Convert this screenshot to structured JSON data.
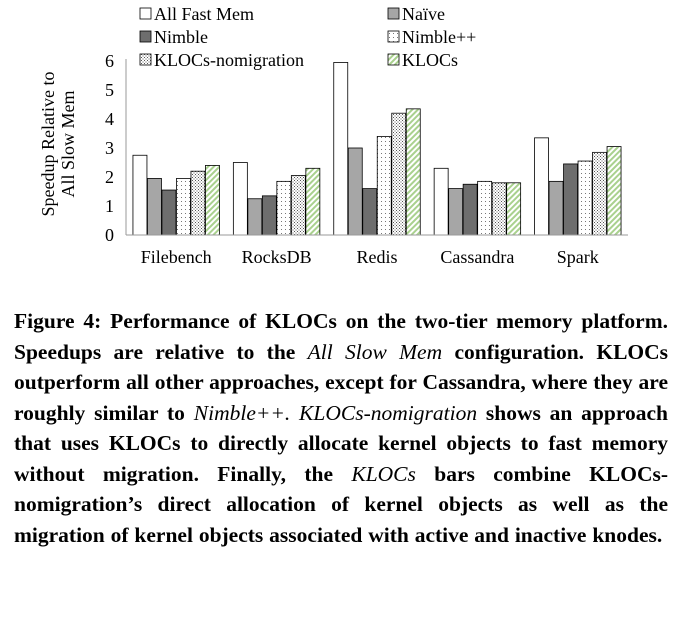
{
  "chart_data": {
    "type": "bar",
    "ylabel": "Speedup Relative to All Slow Mem",
    "ylabel_lines": [
      "Speedup Relative to",
      "All Slow Mem"
    ],
    "ylim": [
      0,
      6
    ],
    "yticks": [
      "0",
      "1",
      "2",
      "3",
      "4",
      "5",
      "6"
    ],
    "grid": false,
    "legend_placement": "top",
    "categories": [
      "Filebench",
      "RocksDB",
      "Redis",
      "Cassandra",
      "Spark"
    ],
    "series": [
      {
        "name": "All Fast Mem",
        "fill": "#ffffff",
        "pattern": "none",
        "values": [
          2.75,
          2.5,
          5.95,
          2.3,
          3.35
        ]
      },
      {
        "name": "Naïve",
        "fill": "#a6a6a6",
        "pattern": "none",
        "values": [
          1.95,
          1.25,
          3.0,
          1.6,
          1.85
        ]
      },
      {
        "name": "Nimble",
        "fill": "#6e6e6e",
        "pattern": "none",
        "values": [
          1.55,
          1.35,
          1.6,
          1.75,
          2.45
        ]
      },
      {
        "name": "Nimble++",
        "fill": "#ffffff",
        "pattern": "dots",
        "values": [
          1.95,
          1.85,
          3.4,
          1.85,
          2.55
        ]
      },
      {
        "name": "KLOCs-nomigration",
        "fill": "#ffffff",
        "pattern": "dense-dots",
        "values": [
          2.2,
          2.05,
          4.2,
          1.8,
          2.85
        ]
      },
      {
        "name": "KLOCs",
        "fill": "#ffffff",
        "pattern": "green-stripes",
        "values": [
          2.4,
          2.3,
          4.35,
          1.8,
          3.05
        ]
      }
    ]
  },
  "caption": {
    "label": "Figure 4: Performance of KLOCs on the two-tier memory platform. Speedups are relative to the",
    "p1_italic": "All Slow Mem",
    "p2": "configuration. KLOCs outperform all other approaches, except for Cassandra, where they are roughly similar to",
    "p3_italic": "Nimble++. KLOCs-nomigration",
    "p4": "shows an approach that uses KLOCs to directly allocate kernel objects to fast memory without migration. Finally, the",
    "p5_italic": "KLOCs",
    "p6": "bars combine KLOCs-nomigration’s direct allocation of kernel objects as well as the migration of kernel objects associated with active and inactive knodes."
  }
}
